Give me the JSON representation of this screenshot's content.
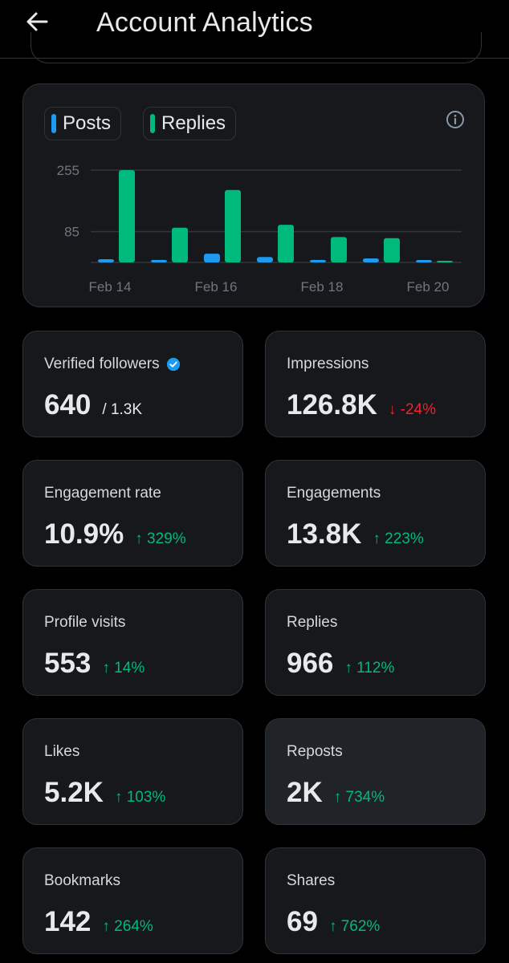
{
  "header": {
    "title": "Account Analytics"
  },
  "colors": {
    "posts": "#1d9bf0",
    "replies": "#00ba7c",
    "up": "#00ba7c",
    "down": "#f4212e",
    "card": "#16181c"
  },
  "chart": {
    "legend": [
      {
        "label": "Posts",
        "color": "#1d9bf0"
      },
      {
        "label": "Replies",
        "color": "#00ba7c"
      }
    ]
  },
  "chart_data": {
    "type": "bar",
    "categories": [
      "Feb 14",
      "Feb 15",
      "Feb 16",
      "Feb 17",
      "Feb 18",
      "Feb 19",
      "Feb 20"
    ],
    "x_tick_labels": [
      "Feb 14",
      "Feb 16",
      "Feb 18",
      "Feb 20"
    ],
    "y_tick_labels": [
      "255",
      "85"
    ],
    "y_ticks": [
      255,
      85
    ],
    "ylim": [
      0,
      255
    ],
    "grid": true,
    "legend_position": "top-left",
    "series": [
      {
        "name": "Posts",
        "color": "#1d9bf0",
        "values": [
          9,
          7,
          24,
          15,
          7,
          11,
          2
        ]
      },
      {
        "name": "Replies",
        "color": "#00ba7c",
        "values": [
          255,
          96,
          200,
          104,
          70,
          67,
          3
        ]
      }
    ]
  },
  "stats": [
    {
      "label": "Verified followers",
      "value": "640",
      "sub": "/ 1.3K",
      "verified": true
    },
    {
      "label": "Impressions",
      "value": "126.8K",
      "change": "↓ -24%",
      "direction": "down"
    },
    {
      "label": "Engagement rate",
      "value": "10.9%",
      "change": "↑ 329%",
      "direction": "up"
    },
    {
      "label": "Engagements",
      "value": "13.8K",
      "change": "↑ 223%",
      "direction": "up"
    },
    {
      "label": "Profile visits",
      "value": "553",
      "change": "↑ 14%",
      "direction": "up"
    },
    {
      "label": "Replies",
      "value": "966",
      "change": "↑ 112%",
      "direction": "up"
    },
    {
      "label": "Likes",
      "value": "5.2K",
      "change": "↑ 103%",
      "direction": "up"
    },
    {
      "label": "Reposts",
      "value": "2K",
      "change": "↑ 734%",
      "direction": "up"
    },
    {
      "label": "Bookmarks",
      "value": "142",
      "change": "↑ 264%",
      "direction": "up"
    },
    {
      "label": "Shares",
      "value": "69",
      "change": "↑ 762%",
      "direction": "up"
    }
  ]
}
